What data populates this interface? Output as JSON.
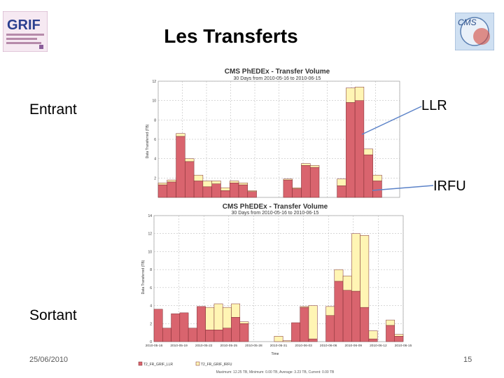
{
  "slide": {
    "title": "Les Transferts",
    "label_entrant": "Entrant",
    "label_sortant": "Sortant",
    "label_llr": "LLR",
    "label_irfu": "IRFU",
    "footer_date": "25/06/2010",
    "page_number": "15"
  },
  "logos": {
    "grif_text": "GRIF",
    "cms_text": "CMS"
  },
  "colors": {
    "llr": "#d9646e",
    "irfu": "#fff5b4",
    "bar_edge": "#7a2a2f",
    "grid": "#b0b0b0",
    "arrow": "#5b82c8"
  },
  "chart_data": [
    {
      "type": "bar",
      "stacked": true,
      "title": "CMS PhEDEx - Transfer Volume",
      "subtitle": "30 Days from 2010-05-16 to 2010-06-15",
      "ylabel": "Data Transferred (TB)",
      "ylim": [
        0,
        12
      ],
      "yticks": [
        2,
        4,
        6,
        8,
        10,
        12
      ],
      "xticks": [],
      "grid": true,
      "series": [
        {
          "name": "T2_FR_GRIF_LLR",
          "values": [
            1.3,
            1.6,
            6.3,
            3.7,
            1.7,
            1.1,
            1.4,
            0.7,
            1.5,
            1.3,
            0.6,
            0,
            0,
            0,
            1.8,
            0.9,
            3.3,
            3.1,
            0,
            0,
            1.2,
            9.8,
            10.0,
            4.4,
            1.7,
            0,
            0
          ]
        },
        {
          "name": "T2_FR_GRIF_IRFU",
          "values": [
            0.2,
            0.2,
            0.3,
            0.3,
            0.6,
            0.6,
            0.3,
            0.3,
            0.2,
            0.2,
            0.1,
            0,
            0,
            0,
            0.1,
            0.1,
            0.2,
            0.2,
            0,
            0,
            0.7,
            1.5,
            1.4,
            0.6,
            0.6,
            0,
            0
          ]
        }
      ]
    },
    {
      "type": "bar",
      "stacked": true,
      "title": "CMS PhEDEx - Transfer Volume",
      "subtitle": "30 Days from 2010-05-16 to 2010-06-15",
      "ylabel": "Data Transferred (TB)",
      "xlabel": "Time",
      "ylim": [
        0,
        14
      ],
      "yticks": [
        0,
        2,
        4,
        6,
        8,
        10,
        12,
        14
      ],
      "xticks": [
        "2010-05-16",
        "2010-05-19",
        "2010-05-22",
        "2010-05-25",
        "2010-05-28",
        "2010-05-31",
        "2010-06-03",
        "2010-06-06",
        "2010-06-09",
        "2010-06-12",
        "2010-06-15"
      ],
      "grid": true,
      "legend": [
        "T2_FR_GRIF_LLR",
        "T2_FR_GRIF_IRFU"
      ],
      "footer": "Maximum: 12.25 TB, Minimum: 0.00 TB, Average: 3.23 TB, Current: 0.00 TB",
      "series": [
        {
          "name": "T2_FR_GRIF_LLR",
          "values": [
            3.6,
            1.5,
            3.1,
            3.2,
            1.5,
            3.9,
            1.3,
            1.3,
            1.5,
            2.7,
            2.0,
            0,
            0,
            0,
            0,
            0,
            2.1,
            3.8,
            0.3,
            0,
            2.9,
            6.7,
            5.7,
            5.6,
            3.8,
            0.3,
            0,
            1.8,
            0.6
          ]
        },
        {
          "name": "T2_FR_GRIF_IRFU",
          "values": [
            0,
            0,
            0,
            0,
            0,
            0,
            2.5,
            2.9,
            2.3,
            1.5,
            0.2,
            0,
            0,
            0,
            0.6,
            0.1,
            0,
            0.1,
            3.7,
            0,
            1.0,
            1.3,
            1.6,
            6.4,
            8.0,
            0.9,
            0,
            0.6,
            0.2
          ]
        }
      ]
    }
  ]
}
